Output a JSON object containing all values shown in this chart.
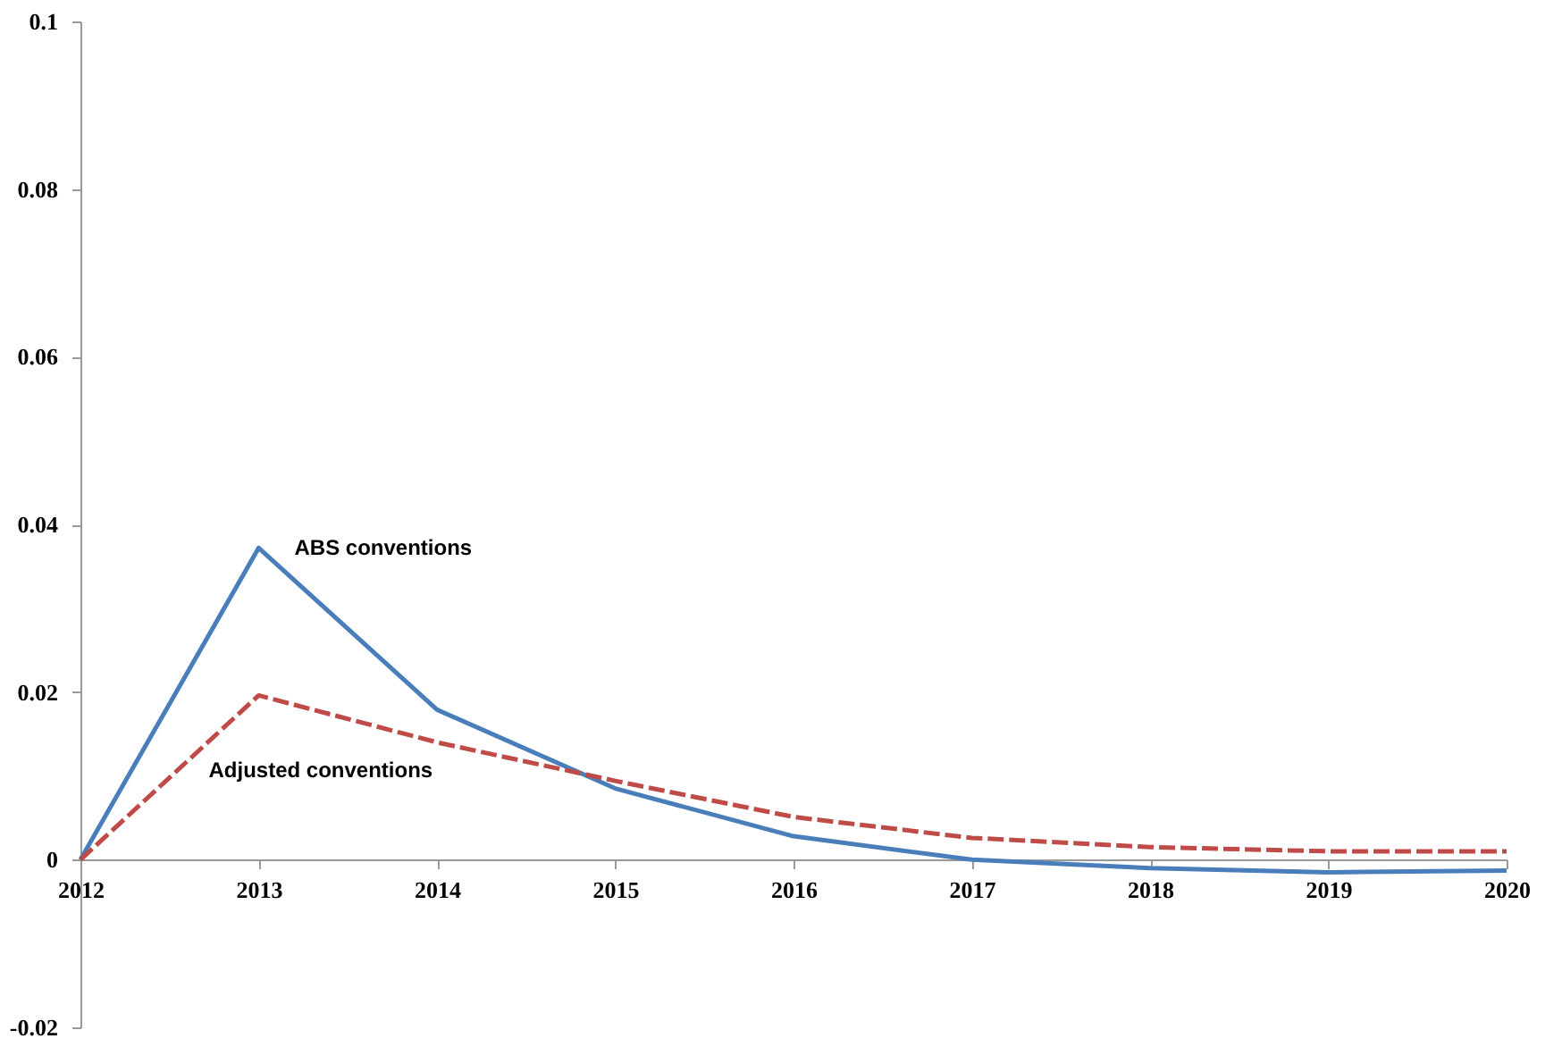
{
  "chart_data": {
    "type": "line",
    "categories": [
      "2012",
      "2013",
      "2014",
      "2015",
      "2016",
      "2017",
      "2018",
      "2019",
      "2020"
    ],
    "series": [
      {
        "name": "ABS conventions",
        "color": "#4a7ebb",
        "line_style": "solid",
        "values": [
          0,
          0.0372,
          0.0179,
          0.0085,
          0.0028,
          0,
          -0.001,
          -0.0015,
          -0.0013
        ]
      },
      {
        "name": "Adjusted conventions",
        "color": "#be4b48",
        "line_style": "dashed",
        "values": [
          0,
          0.0196,
          0.014,
          0.0094,
          0.0051,
          0.0026,
          0.0015,
          0.001,
          0.001
        ]
      }
    ],
    "ylim": [
      -0.02,
      0.1
    ],
    "yticks": [
      -0.02,
      0,
      0.02,
      0.04,
      0.06,
      0.08,
      0.1
    ]
  }
}
